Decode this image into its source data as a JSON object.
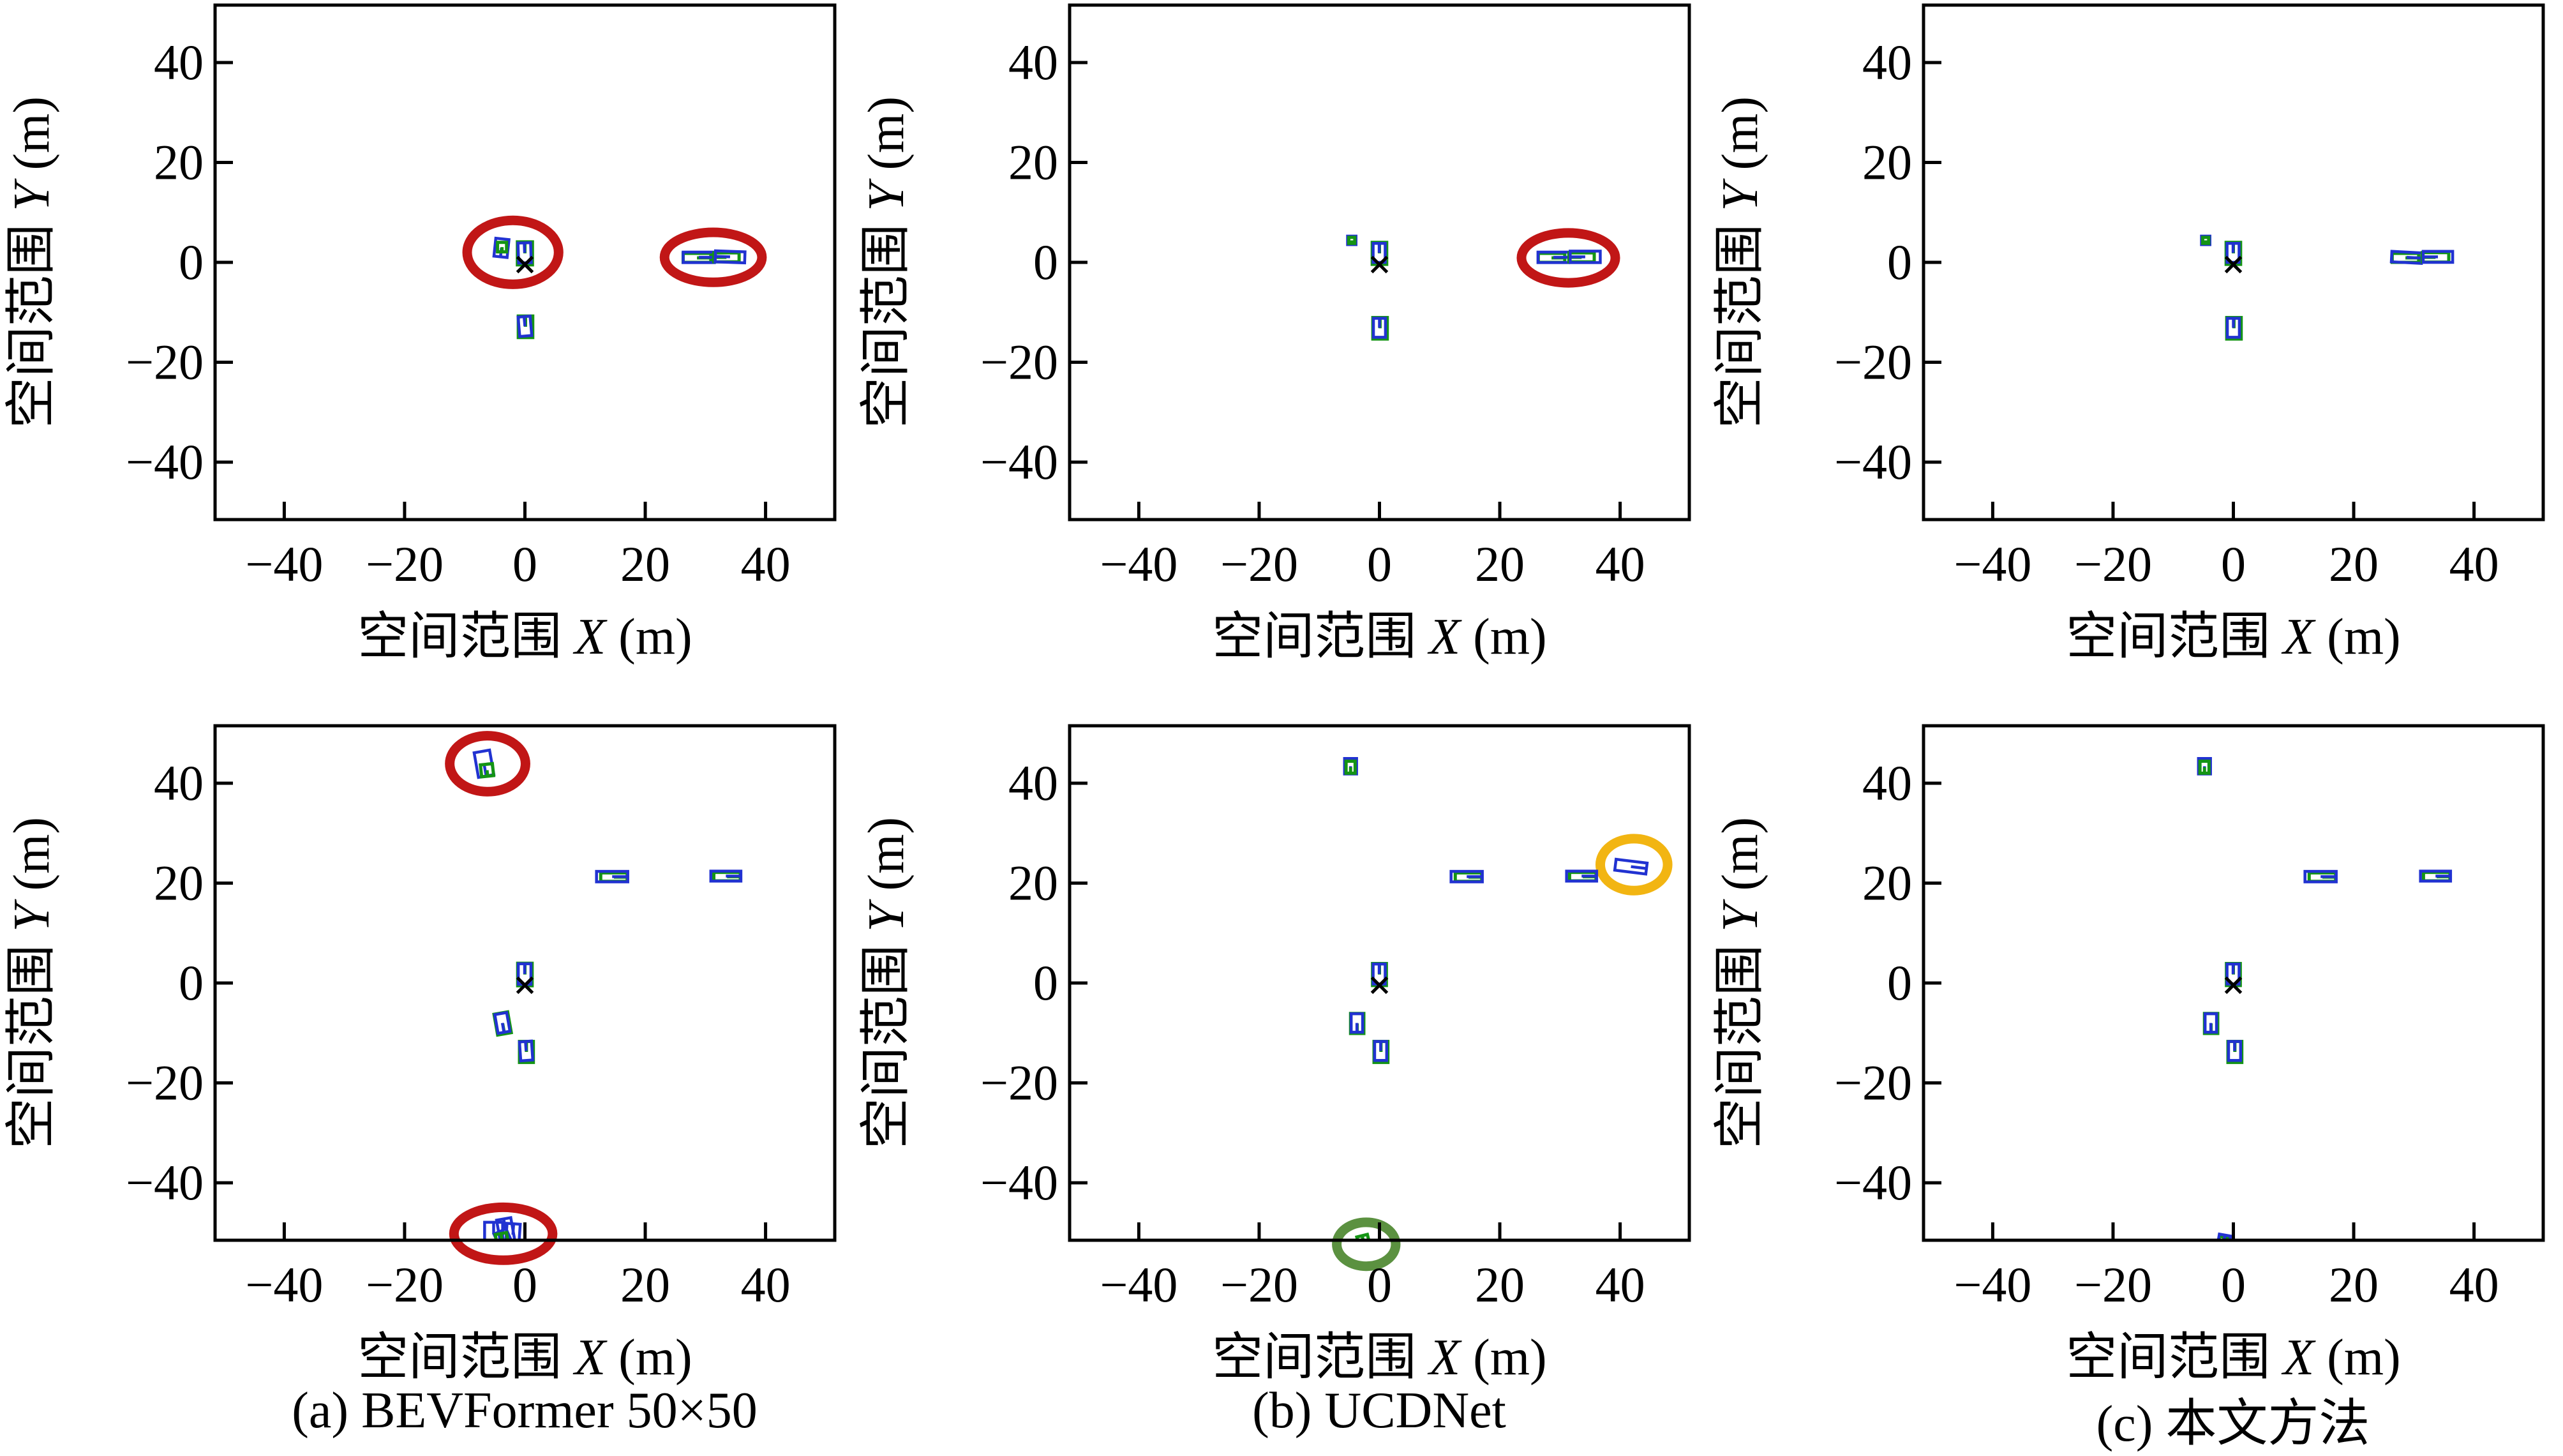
{
  "figure_background": "#ffffff",
  "colors": {
    "prediction_blue": "#2132d1",
    "ground_truth_green": "#149414",
    "highlight_red": "#c11616",
    "highlight_yellow": "#f2b512",
    "highlight_green": "#5b9140",
    "axis_black": "#000000",
    "ego_marker_black": "#000000"
  },
  "captions": [
    "(a) BEVFormer 50×50",
    "(b) UCDNet",
    "(c) 本文方法"
  ],
  "axis": {
    "xlabel": {
      "prefix": "空间范围",
      "variable": "X",
      "unit": " (m)"
    },
    "ylabel": {
      "prefix": "空间范围",
      "variable": "Y",
      "unit": " (m)"
    },
    "xlim": [
      -51.5,
      51.5
    ],
    "ylim": [
      -51.5,
      51.5
    ],
    "xticks": [
      {
        "v": -40,
        "label": "−40"
      },
      {
        "v": -20,
        "label": "−20"
      },
      {
        "v": 0,
        "label": "0"
      },
      {
        "v": 20,
        "label": "20"
      },
      {
        "v": 40,
        "label": "40"
      }
    ],
    "yticks": [
      {
        "v": -40,
        "label": "−40"
      },
      {
        "v": -20,
        "label": "−20"
      },
      {
        "v": 0,
        "label": "0"
      },
      {
        "v": 20,
        "label": "20"
      },
      {
        "v": 40,
        "label": "40"
      }
    ],
    "grid": false,
    "tick_direction": "in"
  },
  "chart_data": {
    "type": "scatter",
    "note": "Bird's-eye-view detection boxes; kind gt = ground truth (green), pred = prediction (blue); coordinates in metres",
    "subplots": [
      {
        "id": "bevformer-scene1",
        "row": 0,
        "col": 0,
        "caption_index": null,
        "ego": {
          "x": 0,
          "y": -0.45
        },
        "boxes": [
          {
            "cx": -3.9,
            "cy": 2.9,
            "w": 2.2,
            "h": 3.6,
            "rot": -6,
            "kind": "pred",
            "heading": "down"
          },
          {
            "cx": -3.8,
            "cy": 3.05,
            "w": 1.5,
            "h": 1.9,
            "rot": 0,
            "kind": "gt",
            "heading": "down"
          },
          {
            "cx": 0.0,
            "cy": 1.8,
            "w": 2.5,
            "h": 4.6,
            "rot": 0,
            "kind": "gt",
            "heading": "up"
          },
          {
            "cx": -0.05,
            "cy": 1.9,
            "w": 2.1,
            "h": 4.0,
            "rot": 2,
            "kind": "pred",
            "heading": "up"
          },
          {
            "cx": 0.1,
            "cy": -12.9,
            "w": 2.4,
            "h": 4.3,
            "rot": 0,
            "kind": "gt",
            "heading": "up"
          },
          {
            "cx": 0.0,
            "cy": -12.8,
            "w": 2.0,
            "h": 3.9,
            "rot": 5,
            "kind": "pred",
            "heading": "up"
          },
          {
            "cx": 28.6,
            "cy": 0.9,
            "w": 4.6,
            "h": 1.8,
            "rot": 0,
            "kind": "gt",
            "heading": "right"
          },
          {
            "cx": 28.9,
            "cy": 1.0,
            "w": 5.2,
            "h": 2.1,
            "rot": 0,
            "kind": "pred",
            "heading": "right"
          },
          {
            "cx": 33.5,
            "cy": 1.0,
            "w": 4.2,
            "h": 1.8,
            "rot": 0,
            "kind": "gt",
            "heading": "left"
          },
          {
            "cx": 34.1,
            "cy": 1.1,
            "w": 4.9,
            "h": 2.2,
            "rot": -2,
            "kind": "pred",
            "heading": "left"
          }
        ],
        "circles": [
          {
            "cx": -2.0,
            "cy": 2.0,
            "rx": 7.6,
            "ry": 6.4,
            "color": "highlight_red"
          },
          {
            "cx": 31.3,
            "cy": 1.0,
            "rx": 8.1,
            "ry": 5.0,
            "color": "highlight_red"
          }
        ]
      },
      {
        "id": "ucdnet-scene1",
        "row": 0,
        "col": 1,
        "caption_index": null,
        "ego": {
          "x": 0,
          "y": -0.45
        },
        "boxes": [
          {
            "cx": -4.6,
            "cy": 4.4,
            "w": 1.4,
            "h": 1.7,
            "rot": 0,
            "kind": "pred",
            "heading": "down"
          },
          {
            "cx": -4.6,
            "cy": 4.4,
            "w": 1.0,
            "h": 1.2,
            "rot": 0,
            "kind": "gt",
            "heading": "down"
          },
          {
            "cx": 0.0,
            "cy": 1.8,
            "w": 2.4,
            "h": 4.4,
            "rot": 0,
            "kind": "gt",
            "heading": "up"
          },
          {
            "cx": -0.05,
            "cy": 1.9,
            "w": 2.0,
            "h": 3.8,
            "rot": 0,
            "kind": "pred",
            "heading": "up"
          },
          {
            "cx": 0.1,
            "cy": -13.2,
            "w": 2.4,
            "h": 4.3,
            "rot": 0,
            "kind": "gt",
            "heading": "up"
          },
          {
            "cx": 0.0,
            "cy": -13.1,
            "w": 2.0,
            "h": 3.8,
            "rot": 0,
            "kind": "pred",
            "heading": "up"
          },
          {
            "cx": 28.6,
            "cy": 0.9,
            "w": 4.4,
            "h": 1.8,
            "rot": 0,
            "kind": "gt",
            "heading": "right"
          },
          {
            "cx": 28.9,
            "cy": 1.0,
            "w": 5.1,
            "h": 2.1,
            "rot": 0,
            "kind": "pred",
            "heading": "right"
          },
          {
            "cx": 33.6,
            "cy": 1.0,
            "w": 4.2,
            "h": 1.8,
            "rot": 0,
            "kind": "gt",
            "heading": "left"
          },
          {
            "cx": 34.2,
            "cy": 1.1,
            "w": 5.0,
            "h": 2.3,
            "rot": 0,
            "kind": "pred",
            "heading": "left"
          }
        ],
        "circles": [
          {
            "cx": 31.4,
            "cy": 0.9,
            "rx": 7.8,
            "ry": 5.0,
            "color": "highlight_red"
          }
        ]
      },
      {
        "id": "ours-scene1",
        "row": 0,
        "col": 2,
        "caption_index": null,
        "ego": {
          "x": 0,
          "y": -0.45
        },
        "boxes": [
          {
            "cx": -4.6,
            "cy": 4.4,
            "w": 1.4,
            "h": 1.7,
            "rot": 0,
            "kind": "pred",
            "heading": "down"
          },
          {
            "cx": -4.6,
            "cy": 4.4,
            "w": 1.0,
            "h": 1.2,
            "rot": 0,
            "kind": "gt",
            "heading": "down"
          },
          {
            "cx": 0.0,
            "cy": 1.8,
            "w": 2.4,
            "h": 4.4,
            "rot": 0,
            "kind": "gt",
            "heading": "up"
          },
          {
            "cx": -0.05,
            "cy": 1.9,
            "w": 2.0,
            "h": 3.8,
            "rot": 0,
            "kind": "pred",
            "heading": "up"
          },
          {
            "cx": 0.1,
            "cy": -13.2,
            "w": 2.4,
            "h": 4.3,
            "rot": 0,
            "kind": "gt",
            "heading": "up"
          },
          {
            "cx": 0.0,
            "cy": -13.1,
            "w": 2.0,
            "h": 3.8,
            "rot": 0,
            "kind": "pred",
            "heading": "up"
          },
          {
            "cx": 28.6,
            "cy": 0.9,
            "w": 4.4,
            "h": 1.8,
            "rot": 0,
            "kind": "gt",
            "heading": "right"
          },
          {
            "cx": 28.8,
            "cy": 1.0,
            "w": 5.0,
            "h": 2.1,
            "rot": -3,
            "kind": "pred",
            "heading": "right"
          },
          {
            "cx": 33.6,
            "cy": 1.0,
            "w": 4.4,
            "h": 1.9,
            "rot": 0,
            "kind": "gt",
            "heading": "left"
          },
          {
            "cx": 34.0,
            "cy": 1.1,
            "w": 4.9,
            "h": 2.2,
            "rot": 0,
            "kind": "pred",
            "heading": "left"
          }
        ],
        "circles": []
      },
      {
        "id": "bevformer-scene2",
        "row": 1,
        "col": 0,
        "caption_index": 0,
        "ego": {
          "x": 0,
          "y": -0.45
        },
        "boxes": [
          {
            "cx": -6.8,
            "cy": 43.9,
            "w": 2.6,
            "h": 5.0,
            "rot": 10,
            "kind": "pred",
            "heading": "down"
          },
          {
            "cx": -6.3,
            "cy": 42.6,
            "w": 2.0,
            "h": 2.4,
            "rot": 6,
            "kind": "gt",
            "heading": "down"
          },
          {
            "cx": 14.8,
            "cy": 21.2,
            "w": 4.4,
            "h": 1.7,
            "rot": 0,
            "kind": "gt",
            "heading": "right"
          },
          {
            "cx": 14.5,
            "cy": 21.3,
            "w": 5.2,
            "h": 2.1,
            "rot": 0,
            "kind": "pred",
            "heading": "right"
          },
          {
            "cx": 33.6,
            "cy": 21.3,
            "w": 4.4,
            "h": 1.7,
            "rot": 0,
            "kind": "gt",
            "heading": "right"
          },
          {
            "cx": 33.4,
            "cy": 21.4,
            "w": 5.0,
            "h": 2.0,
            "rot": 0,
            "kind": "pred",
            "heading": "right"
          },
          {
            "cx": 0.0,
            "cy": 1.7,
            "w": 2.4,
            "h": 4.5,
            "rot": 0,
            "kind": "gt",
            "heading": "up"
          },
          {
            "cx": -0.05,
            "cy": 1.8,
            "w": 2.1,
            "h": 4.1,
            "rot": 0,
            "kind": "pred",
            "heading": "up"
          },
          {
            "cx": -3.7,
            "cy": -8.1,
            "w": 2.3,
            "h": 4.2,
            "rot": 10,
            "kind": "gt",
            "heading": "down"
          },
          {
            "cx": -3.75,
            "cy": -8.0,
            "w": 2.0,
            "h": 3.8,
            "rot": 10,
            "kind": "pred",
            "heading": "down"
          },
          {
            "cx": 0.25,
            "cy": -13.8,
            "w": 2.3,
            "h": 4.2,
            "rot": 0,
            "kind": "gt",
            "heading": "up"
          },
          {
            "cx": 0.2,
            "cy": -13.6,
            "w": 2.0,
            "h": 3.8,
            "rot": 4,
            "kind": "pred",
            "heading": "up"
          },
          {
            "cx": -5.2,
            "cy": -50.3,
            "w": 3.0,
            "h": 4.8,
            "rot": 0,
            "kind": "pred",
            "heading": "up"
          },
          {
            "cx": -3.2,
            "cy": -49.5,
            "w": 2.4,
            "h": 4.6,
            "rot": 10,
            "kind": "pred",
            "heading": "up"
          },
          {
            "cx": -2.0,
            "cy": -50.4,
            "w": 2.2,
            "h": 4.4,
            "rot": -4,
            "kind": "pred",
            "heading": "up"
          },
          {
            "cx": -3.6,
            "cy": -51.2,
            "w": 2.2,
            "h": 3.2,
            "rot": 24,
            "kind": "pred",
            "heading": "up"
          },
          {
            "cx": -3.8,
            "cy": -51.5,
            "w": 1.9,
            "h": 2.7,
            "rot": 10,
            "kind": "gt",
            "heading": "up"
          }
        ],
        "circles": [
          {
            "cx": -6.2,
            "cy": 43.9,
            "rx": 6.3,
            "ry": 5.6,
            "color": "highlight_red"
          },
          {
            "cx": -3.6,
            "cy": -50.2,
            "rx": 8.2,
            "ry": 5.3,
            "color": "highlight_red"
          }
        ]
      },
      {
        "id": "ucdnet-scene2",
        "row": 1,
        "col": 1,
        "caption_index": 1,
        "ego": {
          "x": 0,
          "y": -0.45
        },
        "boxes": [
          {
            "cx": -4.8,
            "cy": 43.4,
            "w": 2.0,
            "h": 3.1,
            "rot": 0,
            "kind": "pred",
            "heading": "down"
          },
          {
            "cx": -4.8,
            "cy": 43.2,
            "w": 1.5,
            "h": 2.4,
            "rot": 0,
            "kind": "gt",
            "heading": "down"
          },
          {
            "cx": 14.8,
            "cy": 21.2,
            "w": 4.4,
            "h": 1.7,
            "rot": 0,
            "kind": "gt",
            "heading": "right"
          },
          {
            "cx": 14.5,
            "cy": 21.3,
            "w": 5.2,
            "h": 2.1,
            "rot": 0,
            "kind": "pred",
            "heading": "right"
          },
          {
            "cx": 33.8,
            "cy": 21.3,
            "w": 4.4,
            "h": 1.7,
            "rot": 0,
            "kind": "gt",
            "heading": "right"
          },
          {
            "cx": 33.6,
            "cy": 21.4,
            "w": 5.0,
            "h": 2.0,
            "rot": 0,
            "kind": "pred",
            "heading": "right"
          },
          {
            "cx": 41.8,
            "cy": 23.3,
            "w": 5.2,
            "h": 2.2,
            "rot": -7,
            "kind": "pred",
            "heading": "right"
          },
          {
            "cx": 0.0,
            "cy": 1.7,
            "w": 2.3,
            "h": 4.4,
            "rot": 0,
            "kind": "gt",
            "heading": "up"
          },
          {
            "cx": -0.05,
            "cy": 1.8,
            "w": 2.0,
            "h": 4.0,
            "rot": 0,
            "kind": "pred",
            "heading": "up"
          },
          {
            "cx": -3.7,
            "cy": -8.1,
            "w": 2.2,
            "h": 4.0,
            "rot": 0,
            "kind": "gt",
            "heading": "down"
          },
          {
            "cx": -3.75,
            "cy": -8.0,
            "w": 1.9,
            "h": 3.7,
            "rot": 0,
            "kind": "pred",
            "heading": "down"
          },
          {
            "cx": 0.25,
            "cy": -13.8,
            "w": 2.3,
            "h": 4.2,
            "rot": 0,
            "kind": "gt",
            "heading": "up"
          },
          {
            "cx": 0.2,
            "cy": -13.6,
            "w": 2.0,
            "h": 3.8,
            "rot": 0,
            "kind": "pred",
            "heading": "up"
          },
          {
            "cx": -2.6,
            "cy": -52.0,
            "w": 1.8,
            "h": 2.9,
            "rot": 14,
            "kind": "gt",
            "heading": "up"
          }
        ],
        "circles": [
          {
            "cx": 42.3,
            "cy": 23.7,
            "rx": 5.6,
            "ry": 5.2,
            "color": "highlight_yellow"
          },
          {
            "cx": -2.2,
            "cy": -52.3,
            "rx": 4.9,
            "ry": 4.4,
            "color": "highlight_green"
          }
        ]
      },
      {
        "id": "ours-scene2",
        "row": 1,
        "col": 2,
        "caption_index": 2,
        "ego": {
          "x": 0,
          "y": -0.45
        },
        "boxes": [
          {
            "cx": -4.8,
            "cy": 43.4,
            "w": 2.0,
            "h": 3.1,
            "rot": 0,
            "kind": "pred",
            "heading": "down"
          },
          {
            "cx": -4.8,
            "cy": 43.2,
            "w": 1.5,
            "h": 2.4,
            "rot": 0,
            "kind": "gt",
            "heading": "down"
          },
          {
            "cx": 14.8,
            "cy": 21.2,
            "w": 4.4,
            "h": 1.7,
            "rot": 0,
            "kind": "gt",
            "heading": "right"
          },
          {
            "cx": 14.5,
            "cy": 21.3,
            "w": 5.2,
            "h": 2.1,
            "rot": 0,
            "kind": "pred",
            "heading": "right"
          },
          {
            "cx": 33.8,
            "cy": 21.3,
            "w": 4.4,
            "h": 1.7,
            "rot": 0,
            "kind": "gt",
            "heading": "right"
          },
          {
            "cx": 33.6,
            "cy": 21.4,
            "w": 5.0,
            "h": 2.0,
            "rot": 0,
            "kind": "pred",
            "heading": "right"
          },
          {
            "cx": 0.0,
            "cy": 1.7,
            "w": 2.3,
            "h": 4.4,
            "rot": 0,
            "kind": "gt",
            "heading": "up"
          },
          {
            "cx": -0.05,
            "cy": 1.8,
            "w": 2.0,
            "h": 4.0,
            "rot": 0,
            "kind": "pred",
            "heading": "up"
          },
          {
            "cx": -3.7,
            "cy": -8.1,
            "w": 2.2,
            "h": 4.0,
            "rot": 0,
            "kind": "gt",
            "heading": "down"
          },
          {
            "cx": -3.75,
            "cy": -8.0,
            "w": 1.9,
            "h": 3.7,
            "rot": 0,
            "kind": "pred",
            "heading": "down"
          },
          {
            "cx": 0.25,
            "cy": -13.8,
            "w": 2.3,
            "h": 4.2,
            "rot": 0,
            "kind": "gt",
            "heading": "up"
          },
          {
            "cx": 0.2,
            "cy": -13.6,
            "w": 2.0,
            "h": 3.8,
            "rot": 0,
            "kind": "pred",
            "heading": "up"
          },
          {
            "cx": -1.7,
            "cy": -52.1,
            "w": 1.6,
            "h": 2.5,
            "rot": -10,
            "kind": "gt",
            "heading": "up"
          },
          {
            "cx": -1.6,
            "cy": -51.9,
            "w": 1.9,
            "h": 2.9,
            "rot": -10,
            "kind": "pred",
            "heading": "up"
          }
        ],
        "circles": []
      }
    ]
  }
}
